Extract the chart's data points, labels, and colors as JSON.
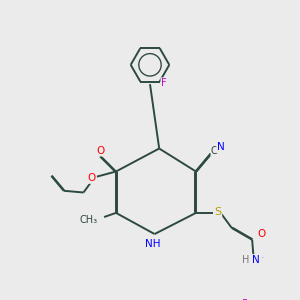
{
  "bg": "#ebebeb",
  "bond_color": "#2d4a3e",
  "bond_width": 1.4,
  "atom_colors": {
    "N": "#0000ff",
    "O": "#ff0000",
    "F": "#cc00cc",
    "S": "#b8a000",
    "H": "#777777",
    "C": "#2d4a3e"
  }
}
